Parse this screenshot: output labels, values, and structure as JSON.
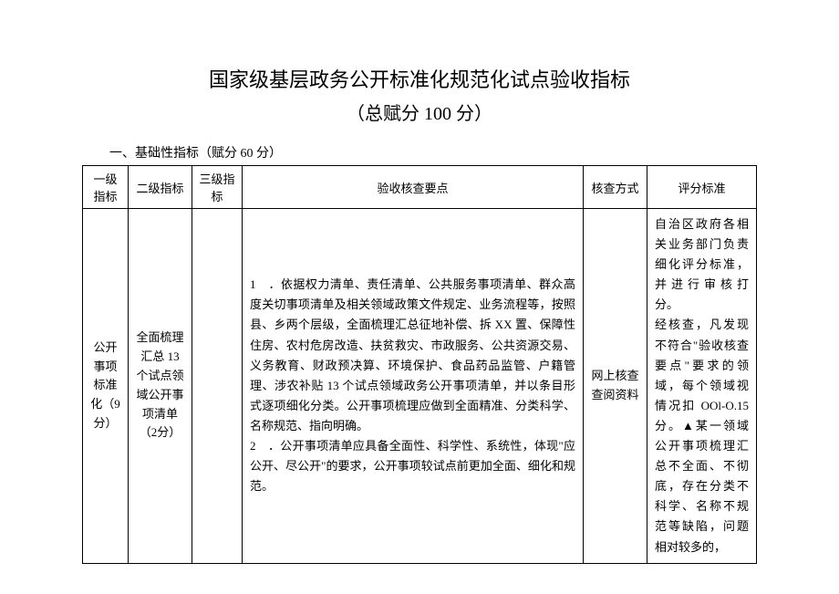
{
  "title": {
    "main": "国家级基层政务公开标准化规范化试点验收指标",
    "sub": "（总赋分 100 分）"
  },
  "section_heading": "一、基础性指标（赋分 60 分）",
  "headers": {
    "col1": "一级指标",
    "col2": "二级指标",
    "col3": "三级指标",
    "col4": "验收核查要点",
    "col5": "核查方式",
    "col6": "评分标准"
  },
  "row": {
    "level1": "公开事项标准化（9 分）",
    "level2": "全面梳理汇总 13 个试点领域公开事项清单 （2分）",
    "level3": "",
    "points": "1　．依据权力清单、责任清单、公共服务事项清单、群众高度关切事项清单及相关领域政策文件规定、业务流程等，按照县、乡两个层级，全面梳理汇总征地补偿、拆 XX 置、保障性住房、农村危房改造、扶贫救灾、市政服务、公共资源交易、义务教育、财政预决算、环境保护、食品药品监管、户籍管理、涉农补贴 13 个试点领域政务公开事项清单，并以条目形式逐项细化分类。公开事项梳理应做到全面精准、分类科学、名称规范、指向明确。\n2　．公开事项清单应具备全面性、科学性、系统性，体现\"应公开、尽公开\"的要求，公开事项较试点前更加全面、细化和规范。",
    "method": "网上核查查阅资料",
    "criteria": "自治区政府各相关业务部门负责细化评分标准，并进行审核打分。\n经核查，凡发现不符合\"验收核查要点\"要求的领域，每个领域视情况扣 OOl-O.15 分。▲某一领域公开事项梳理汇总不全面、不彻底，存在分类不科学、名称不规范等缺陷，问题相对较多的，"
  },
  "styles": {
    "background_color": "#ffffff",
    "text_color": "#000000",
    "font_family": "SimSun",
    "title_fontsize": 22,
    "body_fontsize": 13,
    "border_color": "#000000"
  }
}
